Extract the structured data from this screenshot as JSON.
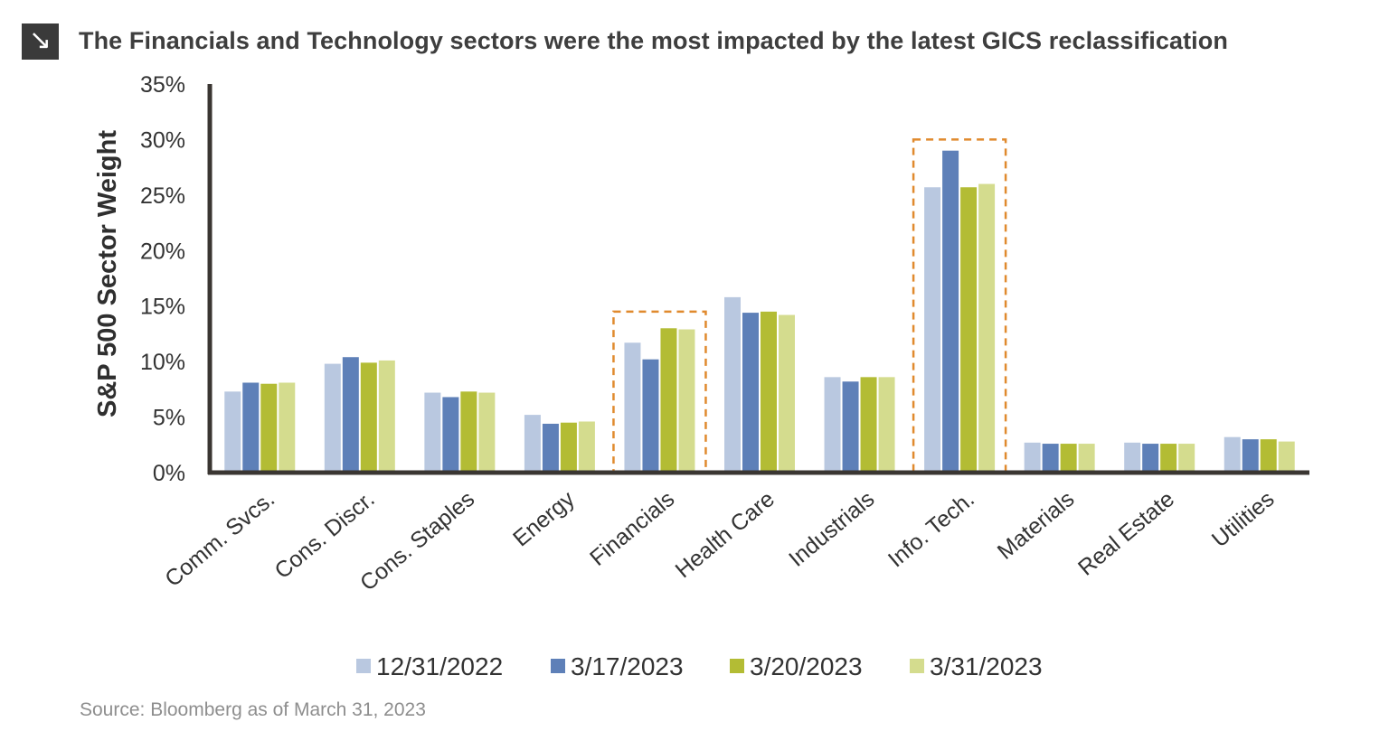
{
  "header": {
    "icon": "arrow-down-right-icon",
    "title": "The Financials and Technology sectors were the most impacted by the latest GICS reclassification"
  },
  "source": "Source: Bloomberg as of March 31, 2023",
  "colors": {
    "s1": "#b9c8e0",
    "s2": "#5e80b8",
    "s3": "#b3bc34",
    "s4": "#d4dc8e",
    "axis": "#3a3632",
    "highlight": "#e08a2e"
  },
  "chart_data": {
    "type": "bar",
    "title": "The Financials and Technology sectors were the most impacted by the latest GICS reclassification",
    "xlabel": "",
    "ylabel": "S&P 500 Sector Weight",
    "ylim": [
      0,
      35
    ],
    "yticks": [
      "0%",
      "5%",
      "10%",
      "15%",
      "20%",
      "25%",
      "30%",
      "35%"
    ],
    "categories": [
      "Comm. Svcs.",
      "Cons. Discr.",
      "Cons. Staples",
      "Energy",
      "Financials",
      "Health Care",
      "Industrials",
      "Info. Tech.",
      "Materials",
      "Real Estate",
      "Utilities"
    ],
    "series": [
      {
        "name": "12/31/2022",
        "values": [
          7.3,
          9.8,
          7.2,
          5.2,
          11.7,
          15.8,
          8.6,
          25.7,
          2.7,
          2.7,
          3.2
        ]
      },
      {
        "name": "3/17/2023",
        "values": [
          8.1,
          10.4,
          6.8,
          4.4,
          10.2,
          14.4,
          8.2,
          29.0,
          2.6,
          2.6,
          3.0
        ]
      },
      {
        "name": "3/20/2023",
        "values": [
          8.0,
          9.9,
          7.3,
          4.5,
          13.0,
          14.5,
          8.6,
          25.7,
          2.6,
          2.6,
          3.0
        ]
      },
      {
        "name": "3/31/2023",
        "values": [
          8.1,
          10.1,
          7.2,
          4.6,
          12.9,
          14.2,
          8.6,
          26.0,
          2.6,
          2.6,
          2.8
        ]
      }
    ],
    "highlighted_categories": [
      "Financials",
      "Info. Tech."
    ],
    "highlight_top": [
      14.5,
      30.0
    ],
    "legend": [
      "12/31/2022",
      "3/17/2023",
      "3/20/2023",
      "3/31/2023"
    ],
    "legend_position": "bottom-center",
    "grid": false
  }
}
